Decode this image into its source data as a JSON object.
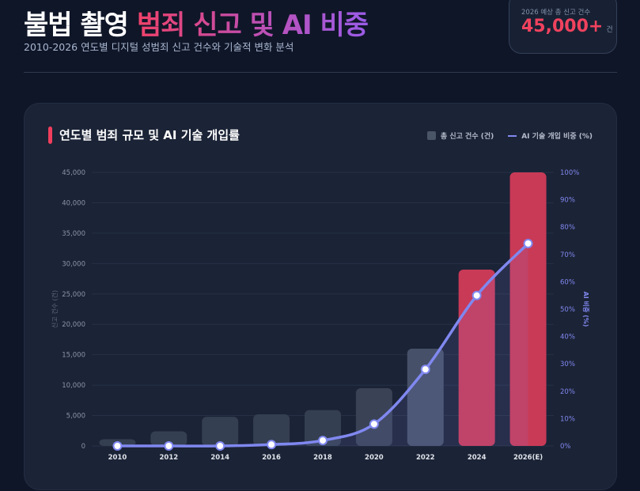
{
  "header": {
    "title_white": "불법 촬영",
    "title_gradient": "범죄 신고 및 AI 비중",
    "subtitle": "2010-2026 연도별 디지털 성범죄 신고 건수와 기술적 변화 분석"
  },
  "stat": {
    "label": "2026 예상 총 신고 건수",
    "value": "45,000+",
    "unit": "건"
  },
  "colors": {
    "accent": "#f03e5c",
    "bar_default": "#343f51",
    "bar_highlight": "#c93a57",
    "line": "#8088f0"
  },
  "chart_data": {
    "type": "bar+line",
    "title": "연도별 범죄 규모 및 AI 기술 개입률",
    "legend": [
      "총 신고 건수 (건)",
      "AI 기술 개입 비중 (%)"
    ],
    "legend_position": "top-right",
    "categories": [
      "2010",
      "2012",
      "2014",
      "2016",
      "2018",
      "2020",
      "2022",
      "2024",
      "2026(E)"
    ],
    "series": [
      {
        "name": "총 신고 건수 (건)",
        "type": "bar",
        "axis": "left",
        "values": [
          1100,
          2400,
          4800,
          5200,
          5900,
          9500,
          16000,
          29000,
          45000
        ]
      },
      {
        "name": "AI 기술 개입 비중 (%)",
        "type": "line",
        "axis": "right",
        "values": [
          0,
          0,
          0,
          0.5,
          2,
          8,
          28,
          55,
          74
        ]
      }
    ],
    "ylabel": "신고 건수 (건)",
    "y2label": "AI 비중 (%)",
    "ylim": [
      0,
      45000
    ],
    "y2lim": [
      0,
      100
    ],
    "yticks": [
      "0",
      "5,000",
      "10,000",
      "15,000",
      "20,000",
      "25,000",
      "30,000",
      "35,000",
      "40,000",
      "45,000"
    ],
    "y2ticks": [
      "0%",
      "10%",
      "20%",
      "30%",
      "40%",
      "50%",
      "60%",
      "70%",
      "80%",
      "90%",
      "100%"
    ],
    "grid": true
  }
}
